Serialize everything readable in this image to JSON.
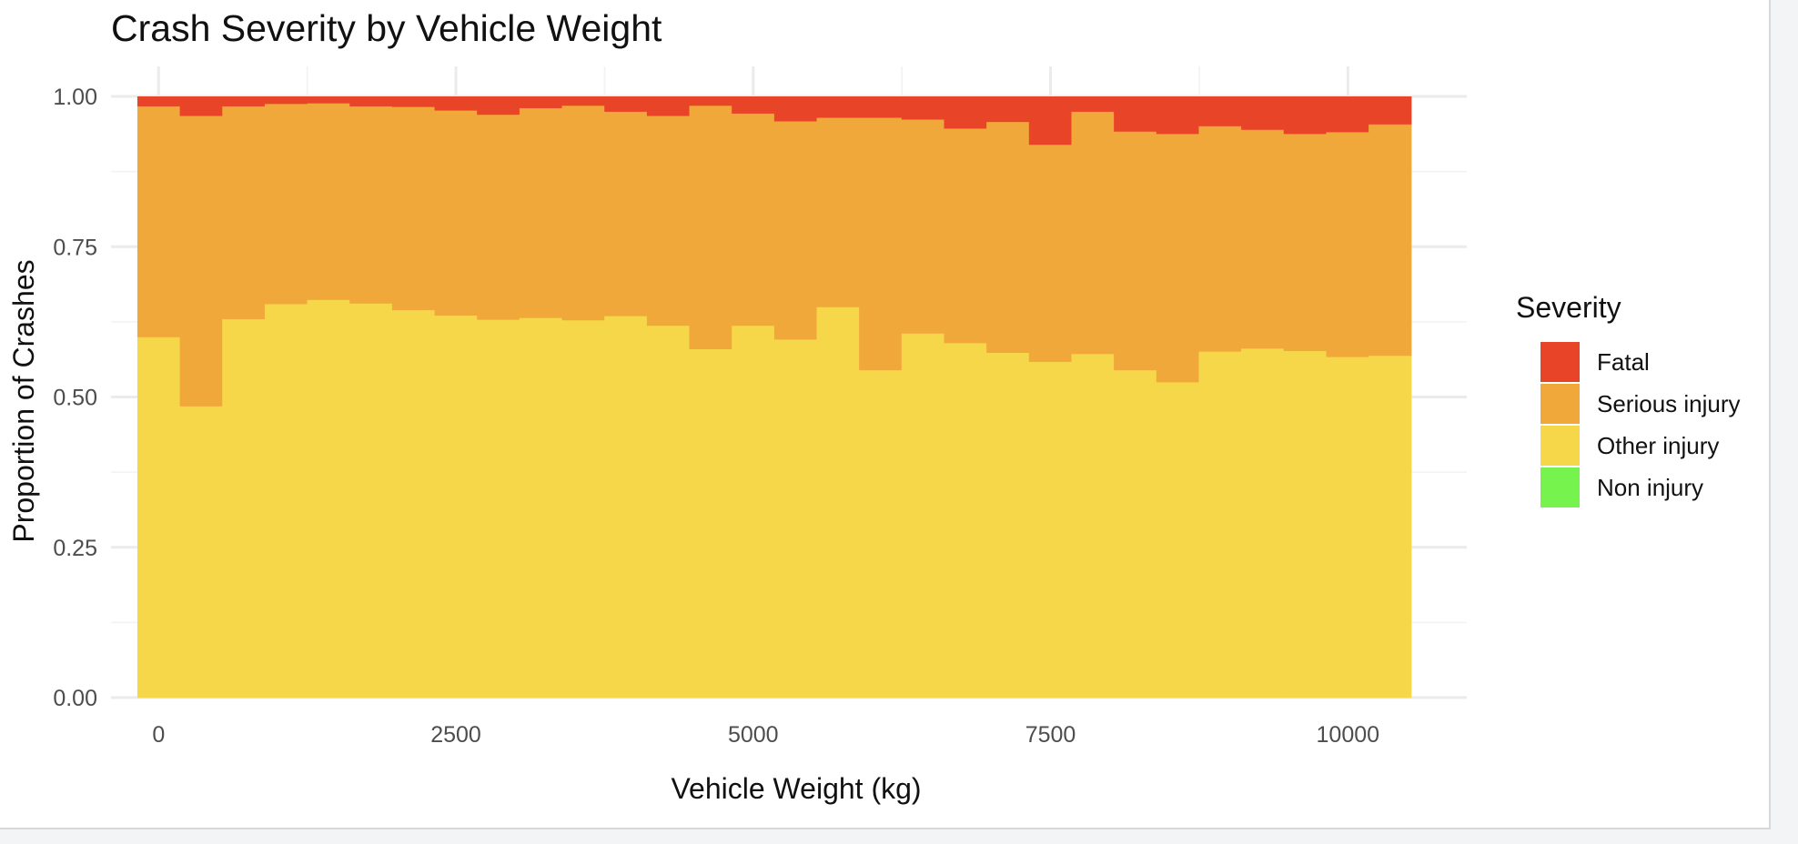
{
  "chart_data": {
    "type": "bar",
    "stacked": true,
    "position": "fill",
    "title": "Crash Severity by Vehicle Weight",
    "xlabel": "Vehicle Weight (kg)",
    "ylabel": "Proportion of Crashes",
    "xlim": [
      -400,
      11000
    ],
    "ylim": [
      0,
      1
    ],
    "x_ticks": [
      0,
      2500,
      5000,
      7500,
      10000
    ],
    "x_tick_labels": [
      "0",
      "2500",
      "5000",
      "7500",
      "10000"
    ],
    "y_ticks": [
      0,
      0.25,
      0.5,
      0.75,
      1.0
    ],
    "y_tick_labels": [
      "0.00",
      "0.25",
      "0.50",
      "0.75",
      "1.00"
    ],
    "grid": true,
    "legend_position": "right",
    "legend_title": "Severity",
    "bin_width": 357,
    "x": [
      0,
      357,
      714,
      1071,
      1428,
      1785,
      2142,
      2499,
      2856,
      3213,
      3570,
      3927,
      4284,
      4641,
      4998,
      5355,
      5712,
      6069,
      6426,
      6783,
      7140,
      7497,
      7854,
      8211,
      8568,
      8925,
      9282,
      9639,
      9996,
      10353
    ],
    "series": [
      {
        "name": "Non injury",
        "color": "#76f34c",
        "values": [
          0,
          0,
          0,
          0,
          0,
          0,
          0,
          0,
          0,
          0,
          0,
          0,
          0,
          0,
          0,
          0,
          0,
          0,
          0,
          0,
          0,
          0,
          0,
          0,
          0,
          0,
          0,
          0,
          0,
          0
        ]
      },
      {
        "name": "Other injury",
        "color": "#f7d74a",
        "values": [
          0.6,
          0.485,
          0.63,
          0.655,
          0.662,
          0.656,
          0.645,
          0.636,
          0.629,
          0.632,
          0.628,
          0.635,
          0.619,
          0.58,
          0.619,
          0.596,
          0.65,
          0.545,
          0.606,
          0.59,
          0.574,
          0.559,
          0.572,
          0.545,
          0.525,
          0.576,
          0.581,
          0.577,
          0.567,
          0.569
        ]
      },
      {
        "name": "Serious injury",
        "color": "#f0a83a",
        "values": [
          0.384,
          0.483,
          0.354,
          0.333,
          0.327,
          0.328,
          0.338,
          0.341,
          0.341,
          0.349,
          0.357,
          0.34,
          0.349,
          0.405,
          0.353,
          0.363,
          0.315,
          0.42,
          0.356,
          0.357,
          0.384,
          0.361,
          0.403,
          0.397,
          0.413,
          0.375,
          0.364,
          0.361,
          0.374,
          0.385
        ]
      },
      {
        "name": "Fatal",
        "color": "#e84427",
        "values": [
          0.016,
          0.032,
          0.016,
          0.012,
          0.011,
          0.016,
          0.017,
          0.023,
          0.03,
          0.019,
          0.015,
          0.025,
          0.032,
          0.015,
          0.028,
          0.041,
          0.035,
          0.035,
          0.038,
          0.053,
          0.042,
          0.08,
          0.025,
          0.058,
          0.062,
          0.049,
          0.055,
          0.062,
          0.059,
          0.046
        ]
      }
    ],
    "legend_order": [
      "Fatal",
      "Serious injury",
      "Other injury",
      "Non injury"
    ]
  }
}
